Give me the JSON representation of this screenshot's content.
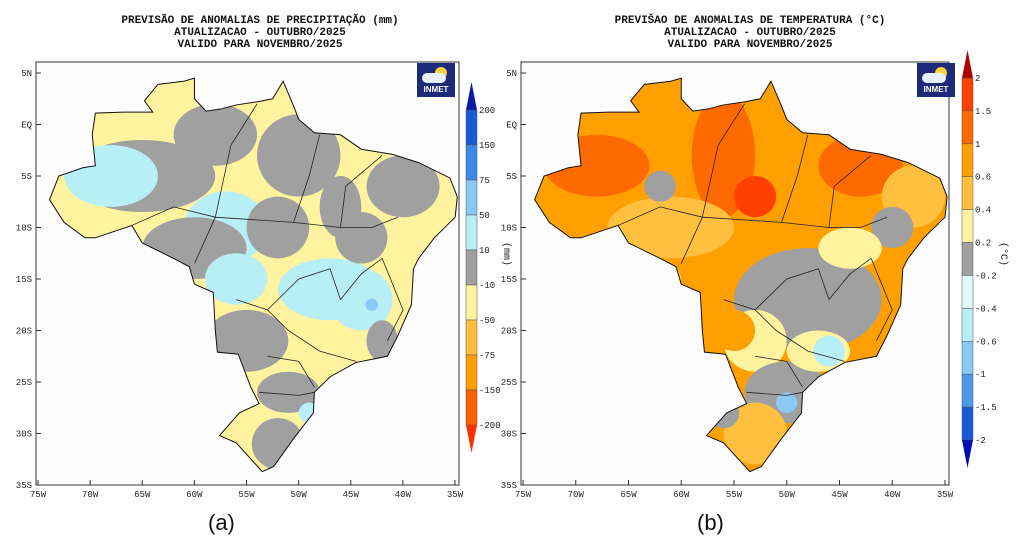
{
  "panels": [
    {
      "id": "precipitation",
      "title_lines": [
        "PREVISÃO DE ANOMALIAS DE PRECIPITAÇÃO (mm)",
        "ATUALIZACAO - OUTUBRO/2025",
        "VALIDO PARA NOVEMBRO/2025"
      ],
      "caption": "(a)",
      "logo_text": "INMET",
      "unit": "(mm)",
      "lat_labels": [
        "5N",
        "EQ",
        "5S",
        "10S",
        "15S",
        "20S",
        "25S",
        "30S",
        "35S"
      ],
      "lon_labels": [
        "75W",
        "70W",
        "65W",
        "60W",
        "55W",
        "50W",
        "45W",
        "40W",
        "35W"
      ],
      "colorbar": {
        "labels": [
          "200",
          "150",
          "75",
          "50",
          "10",
          "-10",
          "-50",
          "-75",
          "-150",
          "-200"
        ],
        "colors": [
          "#0a1aa8",
          "#1a5ad8",
          "#3a8ae8",
          "#8cc8f5",
          "#b8eef5",
          "#a0a0a0",
          "#fff3a0",
          "#ffc040",
          "#ffa000",
          "#ff6000",
          "#ff3000"
        ]
      }
    },
    {
      "id": "temperature",
      "title_lines": [
        "PREVIŠAO DE ANOMALIAS DE TEMPERATURA (°C)",
        "ATUALIZACAO - OUTUBRO/2025",
        "VALIDO PARA NOVEMBRO/2025"
      ],
      "caption": "(b)",
      "logo_text": "INMET",
      "unit": "(°C)",
      "lat_labels": [
        "5N",
        "EQ",
        "5S",
        "10S",
        "15S",
        "20S",
        "25S",
        "30S",
        "35S"
      ],
      "lon_labels": [
        "75W",
        "70W",
        "65W",
        "60W",
        "55W",
        "50W",
        "45W",
        "40W",
        "35W"
      ],
      "colorbar": {
        "labels": [
          "2",
          "1.5",
          "1",
          "0.6",
          "0.4",
          "0.2",
          "-0.2",
          "-0.4",
          "-0.6",
          "-1",
          "-1.5",
          "-2"
        ],
        "colors": [
          "#b00000",
          "#ff4000",
          "#ff6a00",
          "#ffa000",
          "#ffc040",
          "#fff3a0",
          "#a0a0a0",
          "#e0fafa",
          "#b8eef5",
          "#8cc8f5",
          "#4a9ae8",
          "#1a5ad8",
          "#0010b0"
        ]
      }
    }
  ]
}
